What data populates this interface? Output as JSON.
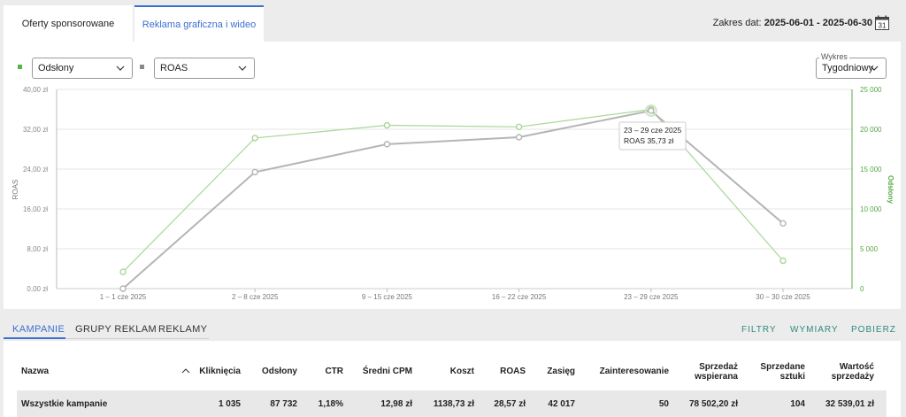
{
  "tabs": [
    {
      "label": "Oferty sponsorowane"
    },
    {
      "label": "Reklama graficzna i wideo"
    }
  ],
  "date_range": {
    "label": "Zakres dat:",
    "value": "2025-06-01 - 2025-06-30",
    "calendar_day": "31"
  },
  "controls": {
    "metric1": "Odsłony",
    "metric2": "ROAS",
    "wykres_label": "Wykres",
    "wykres_value": "Tygodniowy"
  },
  "colors": {
    "roas": "#b5b5b5",
    "odslony": "#a9d69a",
    "odslony_axis": "#55a845",
    "accent": "#3b6fd1",
    "action": "#2f8a7a"
  },
  "tooltip": {
    "line1": "23 – 29 cze 2025",
    "line2": "ROAS 35,73 zł"
  },
  "chart_data": {
    "type": "line",
    "categories": [
      "1 – 1 cze 2025",
      "2 – 8 cze 2025",
      "9 – 15 cze 2025",
      "16 – 22 cze 2025",
      "23 – 29 cze 2025",
      "30 – 30 cze 2025"
    ],
    "series": [
      {
        "name": "ROAS",
        "axis": "left",
        "values": [
          0,
          23.4,
          29.0,
          30.4,
          35.73,
          13.1
        ]
      },
      {
        "name": "Odsłony",
        "axis": "right",
        "values": [
          2100,
          18900,
          20500,
          20300,
          22500,
          3500
        ]
      }
    ],
    "ylabel": "ROAS",
    "y2label": "Odsłony",
    "ylim": [
      0,
      40
    ],
    "y2lim": [
      0,
      25000
    ],
    "yticks": [
      "0,00 zł",
      "8,00 zł",
      "16,00 zł",
      "24,00 zł",
      "32,00 zł",
      "40,00 zł"
    ],
    "y2ticks": [
      "0",
      "5 000",
      "10 000",
      "15 000",
      "20 000",
      "25 000"
    ],
    "grid": true
  },
  "bottom_tabs": [
    {
      "label": "KAMPANIE"
    },
    {
      "label": "GRUPY REKLAM"
    },
    {
      "label": "REKLAMY"
    }
  ],
  "actions": {
    "filters": "FILTRY",
    "dimensions": "WYMIARY",
    "download": "POBIERZ"
  },
  "table": {
    "headers": {
      "name": "Nazwa",
      "clicks": "Kliknięcia",
      "views": "Odsłony",
      "ctr": "CTR",
      "cpm": "Średni CPM",
      "cost": "Koszt",
      "roas": "ROAS",
      "reach": "Zasięg",
      "engagement": "Zainteresowanie",
      "sales1": "Sprzedaż",
      "sales2": "wspierana",
      "sold1": "Sprzedane",
      "sold2": "sztuki",
      "value1": "Wartość",
      "value2": "sprzedaży"
    },
    "total_row": {
      "name": "Wszystkie kampanie",
      "clicks": "1 035",
      "views": "87 732",
      "ctr": "1,18%",
      "cpm": "12,98 zł",
      "cost": "1138,73 zł",
      "roas": "28,57 zł",
      "reach": "42 017",
      "engagement": "50",
      "sales": "78 502,20 zł",
      "sold": "104",
      "value": "32 539,01 zł"
    }
  }
}
